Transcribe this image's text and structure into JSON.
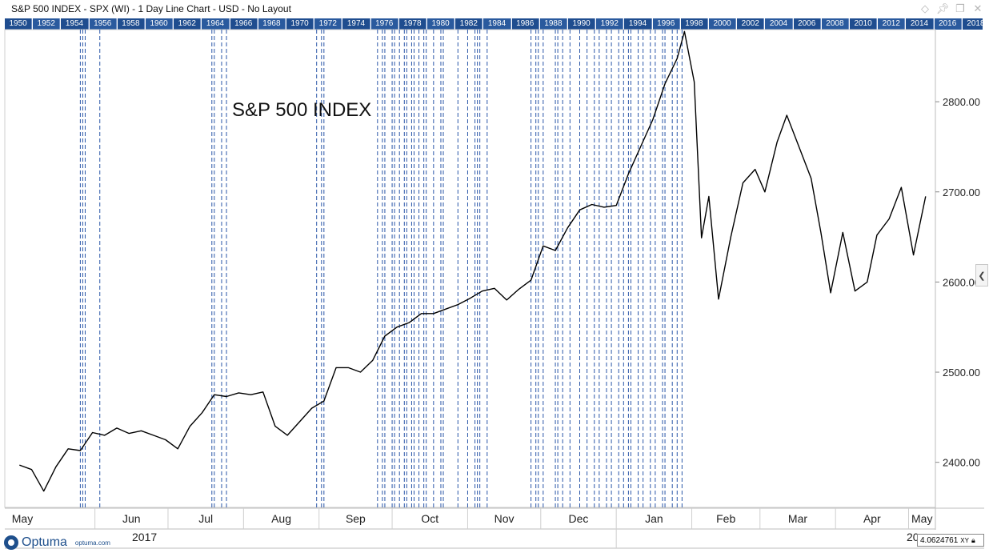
{
  "window": {
    "title": "S&P 500 INDEX - SPX (WI) - 1 Day Line Chart - USD - No Layout",
    "icons": [
      "diamond-icon",
      "pin-icon",
      "restore-icon",
      "close-icon"
    ]
  },
  "year_bar": {
    "labels": [
      "1950",
      "1952",
      "1954",
      "1956",
      "1958",
      "1960",
      "1962",
      "1964",
      "1966",
      "1968",
      "1970",
      "1972",
      "1974",
      "1976",
      "1978",
      "1980",
      "1982",
      "1984",
      "1986",
      "1988",
      "1990",
      "1992",
      "1994",
      "1996",
      "1998",
      "2000",
      "2002",
      "2004",
      "2006",
      "2008",
      "2010",
      "2012",
      "2014",
      "2016",
      "2018"
    ],
    "colors": {
      "blue": "#1f4d8f",
      "white": "#ffffff",
      "text": "#ffffff"
    }
  },
  "footer": {
    "logo": "Optuma",
    "logo_url": "optuma.com",
    "cursor_value": "4.0624761",
    "xy_label": "XY"
  },
  "chart_data": {
    "type": "line",
    "title": "S&P 500 INDEX",
    "series": [
      {
        "name": "S&P 500 INDEX",
        "color": "#000000",
        "x": [
          "2017-05-01",
          "2017-05-06",
          "2017-05-11",
          "2017-05-16",
          "2017-05-21",
          "2017-05-26",
          "2017-05-31",
          "2017-06-05",
          "2017-06-10",
          "2017-06-15",
          "2017-06-20",
          "2017-06-25",
          "2017-06-30",
          "2017-07-05",
          "2017-07-10",
          "2017-07-15",
          "2017-07-20",
          "2017-07-25",
          "2017-07-30",
          "2017-08-04",
          "2017-08-09",
          "2017-08-14",
          "2017-08-19",
          "2017-08-24",
          "2017-08-29",
          "2017-09-03",
          "2017-09-08",
          "2017-09-13",
          "2017-09-18",
          "2017-09-23",
          "2017-09-28",
          "2017-10-03",
          "2017-10-08",
          "2017-10-13",
          "2017-10-18",
          "2017-10-23",
          "2017-10-28",
          "2017-11-02",
          "2017-11-07",
          "2017-11-12",
          "2017-11-17",
          "2017-11-22",
          "2017-11-27",
          "2017-12-02",
          "2017-12-07",
          "2017-12-12",
          "2017-12-17",
          "2017-12-22",
          "2017-12-27",
          "2018-01-01",
          "2018-01-06",
          "2018-01-11",
          "2018-01-16",
          "2018-01-21",
          "2018-01-26",
          "2018-01-29",
          "2018-02-02",
          "2018-02-05",
          "2018-02-08",
          "2018-02-12",
          "2018-02-17",
          "2018-02-22",
          "2018-02-27",
          "2018-03-03",
          "2018-03-08",
          "2018-03-12",
          "2018-03-17",
          "2018-03-22",
          "2018-03-26",
          "2018-03-30",
          "2018-04-04",
          "2018-04-09",
          "2018-04-14",
          "2018-04-18",
          "2018-04-23",
          "2018-04-28",
          "2018-05-03",
          "2018-05-08"
        ],
        "y": [
          2397,
          2392,
          2368,
          2395,
          2415,
          2413,
          2433,
          2430,
          2438,
          2432,
          2435,
          2430,
          2425,
          2415,
          2440,
          2455,
          2475,
          2473,
          2477,
          2475,
          2478,
          2440,
          2430,
          2445,
          2460,
          2468,
          2505,
          2505,
          2500,
          2513,
          2540,
          2550,
          2555,
          2565,
          2565,
          2570,
          2575,
          2582,
          2590,
          2593,
          2580,
          2592,
          2602,
          2640,
          2635,
          2660,
          2680,
          2686,
          2683,
          2685,
          2720,
          2750,
          2780,
          2820,
          2848,
          2878,
          2822,
          2649,
          2695,
          2581,
          2650,
          2710,
          2725,
          2700,
          2755,
          2785,
          2750,
          2715,
          2655,
          2588,
          2655,
          2590,
          2600,
          2652,
          2670,
          2705,
          2630,
          2695
        ]
      }
    ],
    "ylim": [
      2350,
      2880
    ],
    "yticks": [
      2400,
      2500,
      2600,
      2700,
      2800
    ],
    "ytick_labels": [
      "2400.00",
      "2500.00",
      "2600.00",
      "2700.00",
      "2800.00"
    ],
    "xlim": [
      "2017-04-25",
      "2018-05-12"
    ],
    "month_labels": [
      "May",
      "Jun",
      "Jul",
      "Aug",
      "Sep",
      "Oct",
      "Nov",
      "Dec",
      "Jan",
      "Feb",
      "Mar",
      "Apr",
      "May"
    ],
    "month_ticks": [
      "2017-05-01",
      "2017-06-01",
      "2017-07-01",
      "2017-08-01",
      "2017-09-01",
      "2017-10-01",
      "2017-11-01",
      "2017-12-01",
      "2018-01-01",
      "2018-02-01",
      "2018-03-01",
      "2018-04-01",
      "2018-05-01"
    ],
    "year_labels": [
      "2017",
      "20"
    ],
    "vertical_marker_dates": [
      "2017-05-26",
      "2017-05-27",
      "2017-05-28",
      "2017-06-03",
      "2017-07-19",
      "2017-07-20",
      "2017-07-23",
      "2017-07-25",
      "2017-08-31",
      "2017-09-02",
      "2017-09-03",
      "2017-09-25",
      "2017-09-27",
      "2017-09-28",
      "2017-10-01",
      "2017-10-02",
      "2017-10-04",
      "2017-10-06",
      "2017-10-07",
      "2017-10-09",
      "2017-10-10",
      "2017-10-12",
      "2017-10-14",
      "2017-10-15",
      "2017-10-18",
      "2017-10-21",
      "2017-10-22",
      "2017-10-28",
      "2017-11-01",
      "2017-11-04",
      "2017-11-05",
      "2017-11-06",
      "2017-11-09",
      "2017-11-27",
      "2017-11-29",
      "2017-11-30",
      "2017-12-02",
      "2017-12-07",
      "2017-12-08",
      "2017-12-10",
      "2017-12-13",
      "2017-12-17",
      "2017-12-20",
      "2017-12-23",
      "2017-12-25",
      "2017-12-28",
      "2017-12-30",
      "2018-01-02",
      "2018-01-04",
      "2018-01-06",
      "2018-01-07",
      "2018-01-10",
      "2018-01-12",
      "2018-01-15",
      "2018-01-17",
      "2018-01-20",
      "2018-01-21",
      "2018-01-24",
      "2018-01-26",
      "2018-01-28"
    ],
    "marker_color": "#2a56a8",
    "marker_style": "dashed",
    "grid": false
  }
}
